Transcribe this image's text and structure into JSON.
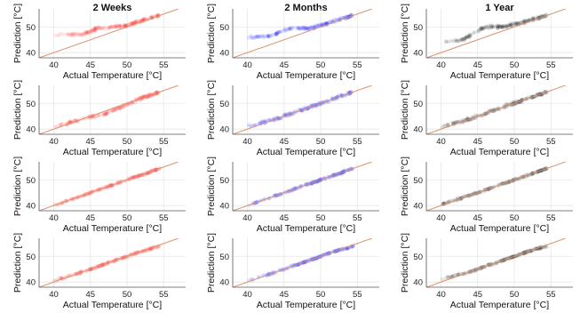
{
  "columns": [
    "2 Weeks",
    "2 Months",
    "1 Year"
  ],
  "colors": {
    "2 Weeks": "#ff2a2a",
    "2 Months": "#2a2aff",
    "1 Year": "#222222",
    "identity_line": "#d9906a",
    "grid": "#e6e6e6",
    "axis": "#555555"
  },
  "chart_data": {
    "type": "scatter",
    "layout": "4 rows x 3 columns of small-multiple scatter panels",
    "xlabel": "Actual Temperature [°C]",
    "ylabel": "Prediction [°C]",
    "xlim": [
      38,
      58
    ],
    "ylim": [
      38,
      57
    ],
    "xticks": [
      40,
      45,
      50,
      55
    ],
    "yticks": [
      40,
      50
    ],
    "grid": true,
    "reference_line": "y = x",
    "x_range_of_points": [
      40,
      54.5
    ],
    "panels": [
      {
        "row": 1,
        "column": "2 Weeks",
        "model": {
          "x": [
            40,
            44,
            46,
            48,
            50,
            52,
            54.5
          ],
          "y": [
            47,
            47,
            49.5,
            50,
            50.5,
            52.5,
            54.5
          ]
        }
      },
      {
        "row": 1,
        "column": "2 Months",
        "model": {
          "x": [
            40,
            43,
            46,
            48,
            50,
            52,
            54.5
          ],
          "y": [
            46,
            46.5,
            49.5,
            49.5,
            50.5,
            52.5,
            54.5
          ]
        }
      },
      {
        "row": 1,
        "column": "1 Year",
        "model": {
          "x": [
            40,
            43,
            46,
            48,
            50,
            52,
            54.5
          ],
          "y": [
            44,
            45,
            50,
            50,
            51,
            52.5,
            54.5
          ]
        }
      },
      {
        "row": 2,
        "column": "2 Weeks",
        "model": {
          "x": [
            40,
            44,
            47,
            50,
            52,
            54.5
          ],
          "y": [
            40.5,
            44,
            46,
            49.5,
            52,
            54.5
          ]
        }
      },
      {
        "row": 2,
        "column": "2 Months",
        "model": {
          "x": [
            40,
            44,
            47,
            50,
            52,
            54.5
          ],
          "y": [
            41,
            44,
            47,
            50,
            52,
            54.5
          ]
        }
      },
      {
        "row": 2,
        "column": "1 Year",
        "model": {
          "x": [
            40,
            44,
            47,
            50,
            52,
            54.5
          ],
          "y": [
            41,
            44,
            47,
            50,
            52,
            54.5
          ]
        }
      },
      {
        "row": 3,
        "column": "2 Weeks",
        "model": {
          "x": [
            40,
            44,
            47,
            50,
            52,
            54.5
          ],
          "y": [
            40,
            44,
            47,
            50,
            52,
            54.5
          ]
        }
      },
      {
        "row": 3,
        "column": "2 Months",
        "model": {
          "x": [
            40,
            44,
            47,
            50,
            52,
            54.5
          ],
          "y": [
            40,
            44,
            47,
            50,
            52,
            54.5
          ]
        }
      },
      {
        "row": 3,
        "column": "1 Year",
        "model": {
          "x": [
            40,
            44,
            47,
            50,
            52,
            54.5
          ],
          "y": [
            40.5,
            44,
            47,
            50,
            52,
            54.5
          ]
        }
      },
      {
        "row": 4,
        "column": "2 Weeks",
        "model": {
          "x": [
            40,
            44,
            47,
            50,
            52,
            54.5
          ],
          "y": [
            40.5,
            44,
            47,
            50,
            52,
            54
          ]
        }
      },
      {
        "row": 4,
        "column": "2 Months",
        "model": {
          "x": [
            40,
            44,
            47,
            50,
            52,
            54.5
          ],
          "y": [
            40.5,
            44,
            47,
            50,
            52,
            54
          ]
        }
      },
      {
        "row": 4,
        "column": "1 Year",
        "model": {
          "x": [
            40,
            44,
            47,
            50,
            52,
            54.5
          ],
          "y": [
            41,
            44,
            47,
            50,
            52,
            54
          ]
        }
      }
    ]
  }
}
